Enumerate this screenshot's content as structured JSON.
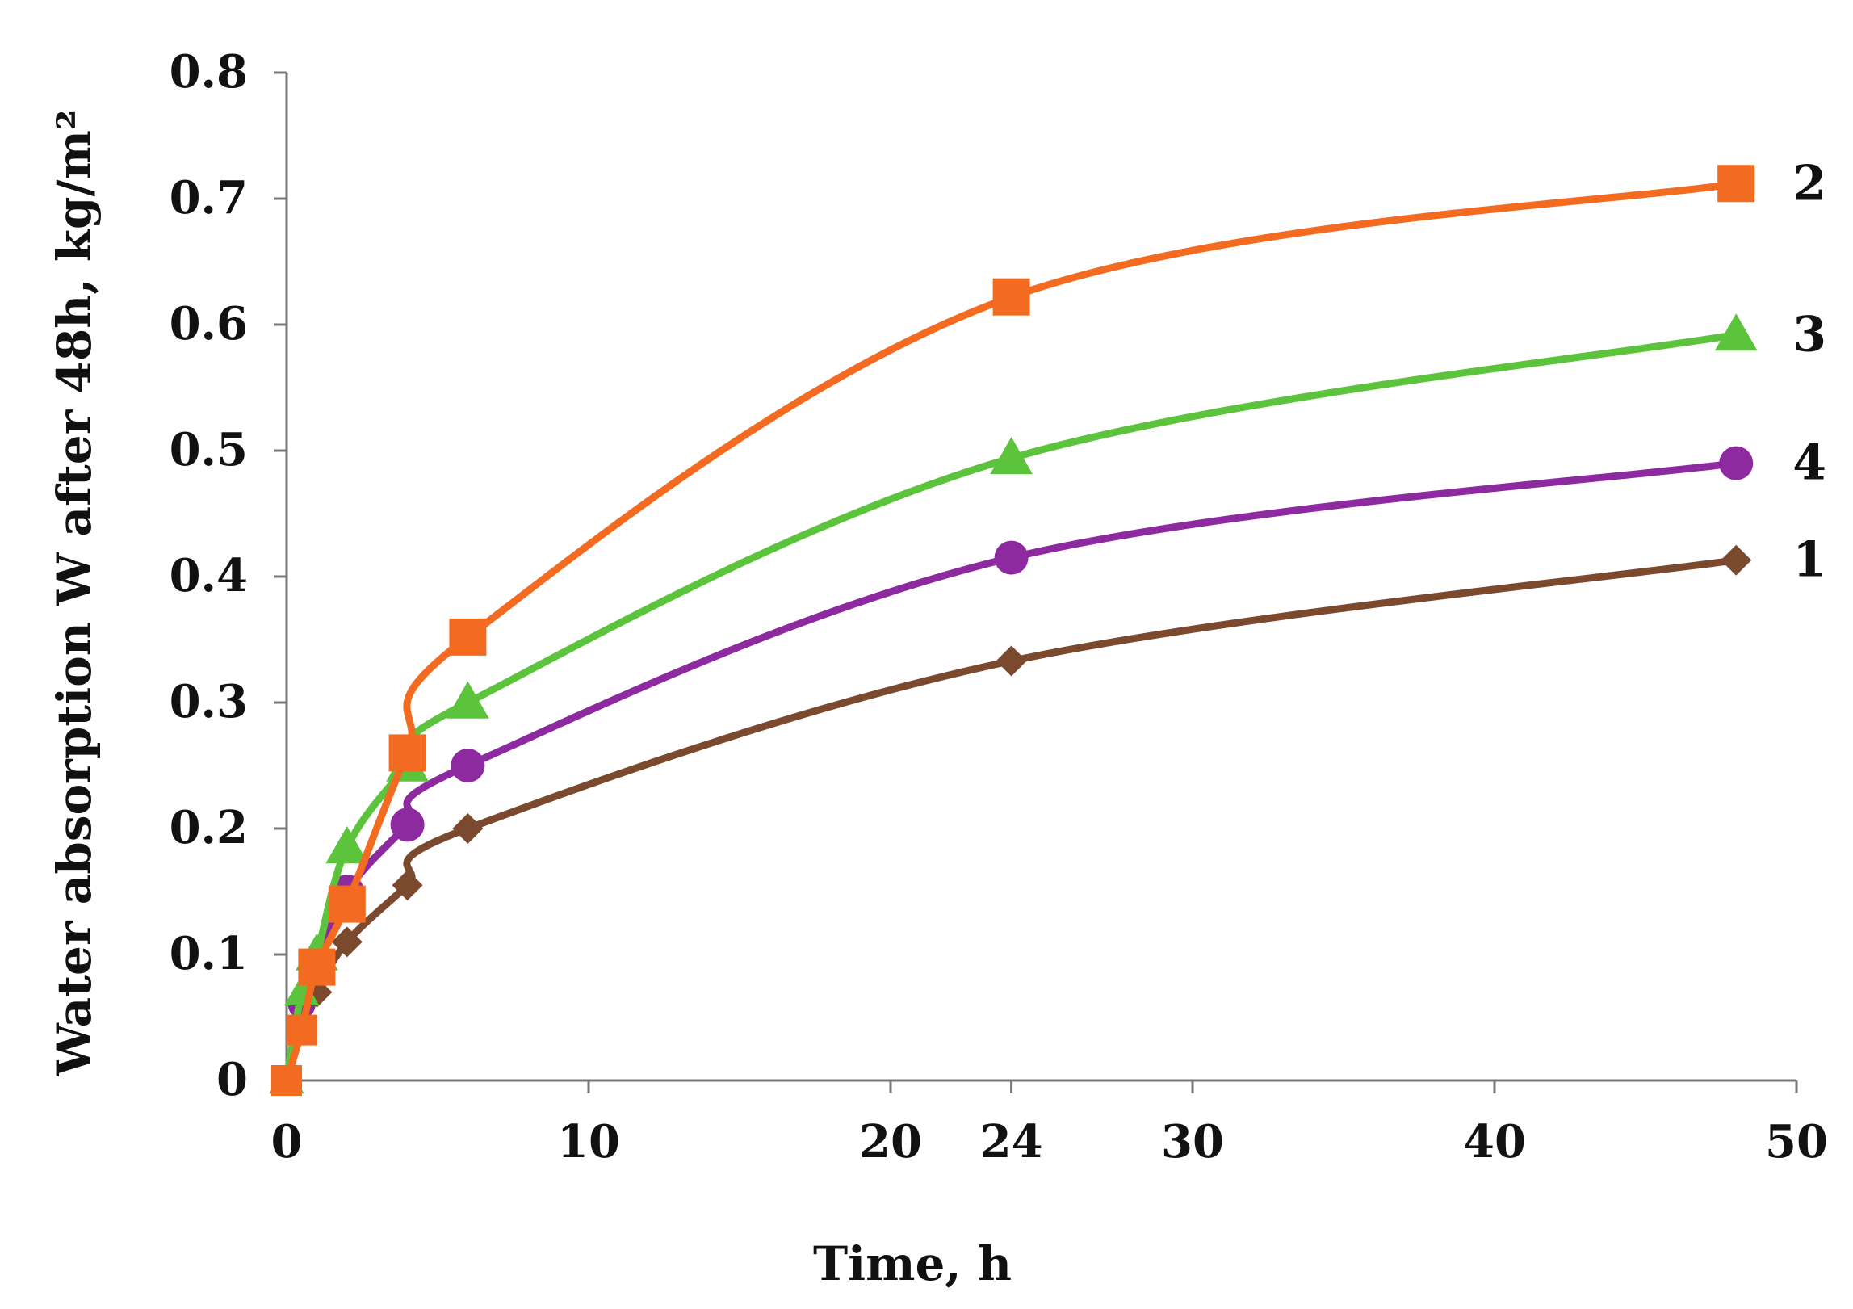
{
  "chart_data": {
    "type": "line",
    "title": "",
    "xlabel": "Time, h",
    "ylabel": "Water absorption W after 48h, kg/m²",
    "xlim": [
      0,
      50
    ],
    "ylim": [
      0,
      0.8
    ],
    "x_ticks": [
      0,
      10,
      20,
      24,
      30,
      40,
      50
    ],
    "x_tick_labels": [
      "0",
      "10",
      "20",
      "24",
      "30",
      "40",
      "50"
    ],
    "y_ticks": [
      0,
      0.1,
      0.2,
      0.3,
      0.4,
      0.5,
      0.6,
      0.7,
      0.8
    ],
    "y_tick_labels": [
      "0",
      "0.1",
      "0.2",
      "0.3",
      "0.4",
      "0.5",
      "0.6",
      "0.7",
      "0.8"
    ],
    "grid": false,
    "legend": "inline labels at series ends (right)",
    "series": [
      {
        "name": "1",
        "color": "#7b4a2e",
        "marker": "diamond",
        "x": [
          0,
          0.5,
          1,
          2,
          4,
          6,
          24,
          48
        ],
        "y": [
          0,
          0.04,
          0.07,
          0.11,
          0.155,
          0.2,
          0.333,
          0.413
        ]
      },
      {
        "name": "2",
        "color": "#f26b21",
        "marker": "square",
        "x": [
          0,
          0.5,
          1,
          2,
          4,
          6,
          24,
          48
        ],
        "y": [
          0,
          0.04,
          0.09,
          0.14,
          0.26,
          0.352,
          0.622,
          0.712
        ]
      },
      {
        "name": "3",
        "color": "#5cc43c",
        "marker": "triangle",
        "x": [
          0,
          0.5,
          1,
          2,
          4,
          6,
          24,
          48
        ],
        "y": [
          0,
          0.07,
          0.1,
          0.185,
          0.25,
          0.3,
          0.494,
          0.592
        ]
      },
      {
        "name": "4",
        "color": "#8e2aa0",
        "marker": "circle",
        "x": [
          0,
          0.5,
          1,
          2,
          4,
          6,
          24,
          48
        ],
        "y": [
          0,
          0.06,
          0.09,
          0.15,
          0.203,
          0.25,
          0.415,
          0.49
        ]
      }
    ]
  }
}
